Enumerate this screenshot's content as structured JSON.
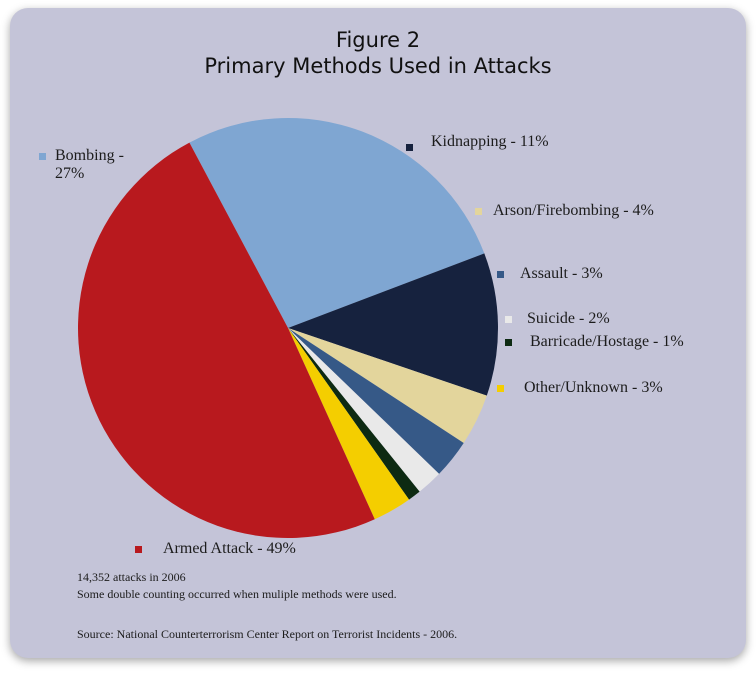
{
  "chart_data": {
    "type": "pie",
    "title": "Figure 2",
    "subtitle": "Primary Methods Used in Attacks",
    "slices": [
      {
        "label": "Bombing - 27%",
        "value": 27,
        "color": "#7fa6d2"
      },
      {
        "label": "Kidnapping - 11%",
        "value": 11,
        "color": "#16223e"
      },
      {
        "label": "Arson/Firebombing - 4%",
        "value": 4,
        "color": "#e3d59c"
      },
      {
        "label": "Assault - 3%",
        "value": 3,
        "color": "#365987"
      },
      {
        "label": "Suicide - 2%",
        "value": 2,
        "color": "#e9e9e9"
      },
      {
        "label": "Barricade/Hostage - 1%",
        "value": 1,
        "color": "#0d2a12"
      },
      {
        "label": "Other/Unknown - 3%",
        "value": 3,
        "color": "#f4ce00"
      },
      {
        "label": "Armed Attack - 49%",
        "value": 49,
        "color": "#b8191e"
      }
    ]
  },
  "notes": {
    "count": "14,352 attacks in 2006",
    "counting": "Some double counting occurred when muliple methods were used.",
    "source": "Source: National Counterterrorism Center Report on Terrorist Incidents - 2006."
  }
}
